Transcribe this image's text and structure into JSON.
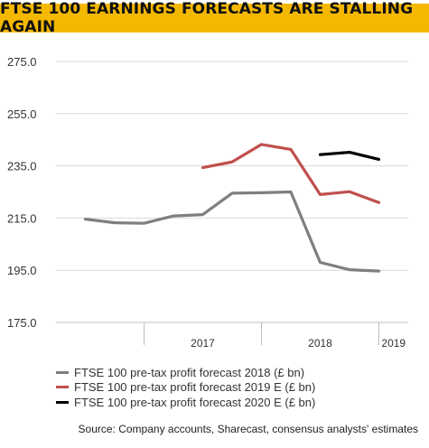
{
  "header": {
    "title": "FTSE 100 EARNINGS FORECASTS ARE STALLING AGAIN"
  },
  "chart_data": {
    "type": "line",
    "title": "FTSE 100 EARNINGS FORECASTS ARE STALLING AGAIN",
    "xlabel": "",
    "ylabel": "",
    "ylim": [
      175,
      275
    ],
    "y_ticks": [
      "175.0",
      "195.0",
      "215.0",
      "235.0",
      "255.0",
      "275.0"
    ],
    "x_ticks": [
      "2017",
      "2018",
      "2019"
    ],
    "grid": "horizontal",
    "legend_position": "bottom",
    "series": [
      {
        "name": "FTSE 100 pre-tax profit forecast 2018 (£ bn)",
        "color": "#7f7f7f",
        "points": [
          {
            "x": "2016-07",
            "y": 214.6
          },
          {
            "x": "2016-10",
            "y": 213.2
          },
          {
            "x": "2017-01",
            "y": 213.0
          },
          {
            "x": "2017-04",
            "y": 215.8
          },
          {
            "x": "2017-07",
            "y": 216.3
          },
          {
            "x": "2017-10",
            "y": 224.5
          },
          {
            "x": "2018-01",
            "y": 224.7
          },
          {
            "x": "2018-04",
            "y": 225.0
          },
          {
            "x": "2018-07",
            "y": 198.0
          },
          {
            "x": "2018-10",
            "y": 195.2
          },
          {
            "x": "2019-01",
            "y": 194.7
          }
        ]
      },
      {
        "name": "FTSE 100 pre-tax profit forecast 2019 E (£ bn)",
        "color": "#c0504d",
        "points": [
          {
            "x": "2017-07",
            "y": 234.3
          },
          {
            "x": "2017-10",
            "y": 236.5
          },
          {
            "x": "2018-01",
            "y": 243.2
          },
          {
            "x": "2018-04",
            "y": 241.3
          },
          {
            "x": "2018-07",
            "y": 224.0
          },
          {
            "x": "2018-10",
            "y": 225.1
          },
          {
            "x": "2019-01",
            "y": 220.9
          }
        ]
      },
      {
        "name": "FTSE 100 pre-tax profit forecast 2020 E (£ bn)",
        "color": "#000000",
        "points": [
          {
            "x": "2018-07",
            "y": 239.3
          },
          {
            "x": "2018-10",
            "y": 240.2
          },
          {
            "x": "2019-01",
            "y": 237.5
          }
        ]
      }
    ]
  },
  "legend": {
    "items": [
      {
        "label": "FTSE 100 pre-tax profit forecast 2018 (£ bn)",
        "color": "#7f7f7f"
      },
      {
        "label": "FTSE 100 pre-tax profit forecast 2019 E (£ bn)",
        "color": "#c0504d"
      },
      {
        "label": "FTSE 100 pre-tax profit forecast 2020 E (£ bn)",
        "color": "#000000"
      }
    ]
  },
  "footer": {
    "source": "Source: Company accounts, Sharecast, consensus analysts' estimates"
  }
}
